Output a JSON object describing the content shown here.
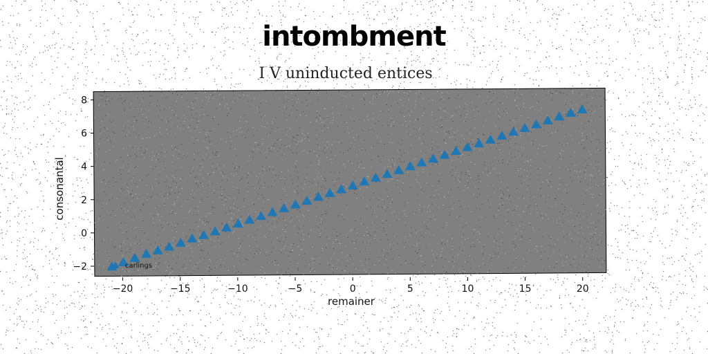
{
  "chart_data": {
    "type": "scatter",
    "title": "intombment",
    "subtitle": "I V uninducted entices",
    "xlabel": "remainer",
    "ylabel": "consonantal",
    "xlim": [
      -22.5,
      22
    ],
    "ylim": [
      -2.5,
      8.6
    ],
    "xticks": [
      -20,
      -15,
      -10,
      -5,
      0,
      5,
      10,
      15,
      20
    ],
    "yticks": [
      -2,
      0,
      2,
      4,
      6,
      8
    ],
    "xtick_labels": [
      "−20",
      "−15",
      "−10",
      "−5",
      "0",
      "5",
      "10",
      "15",
      "20"
    ],
    "ytick_labels": [
      "−2",
      "0",
      "2",
      "4",
      "6",
      "8"
    ],
    "grid": false,
    "legend_position": "lower-left",
    "background_color": "#808080",
    "series": [
      {
        "name": "carlings",
        "marker": "triangle-up",
        "color": "#1f77b4",
        "x": [
          -21,
          -20,
          -19,
          -18,
          -17,
          -16,
          -15,
          -14,
          -13,
          -12,
          -11,
          -10,
          -9,
          -8,
          -7,
          -6,
          -5,
          -4,
          -3,
          -2,
          -1,
          0,
          1,
          2,
          3,
          4,
          5,
          6,
          7,
          8,
          9,
          10,
          11,
          12,
          13,
          14,
          15,
          16,
          17,
          18,
          19,
          20
        ],
        "y": [
          -1.95,
          -1.7,
          -1.45,
          -1.2,
          -1.0,
          -0.78,
          -0.55,
          -0.3,
          -0.1,
          0.12,
          0.35,
          0.58,
          0.8,
          1.02,
          1.25,
          1.48,
          1.7,
          1.92,
          2.15,
          2.38,
          2.6,
          2.82,
          3.05,
          3.28,
          3.5,
          3.72,
          3.95,
          4.18,
          4.4,
          4.62,
          4.85,
          5.08,
          5.3,
          5.52,
          5.75,
          5.98,
          6.2,
          6.42,
          6.65,
          6.88,
          7.1,
          7.3
        ]
      }
    ]
  }
}
